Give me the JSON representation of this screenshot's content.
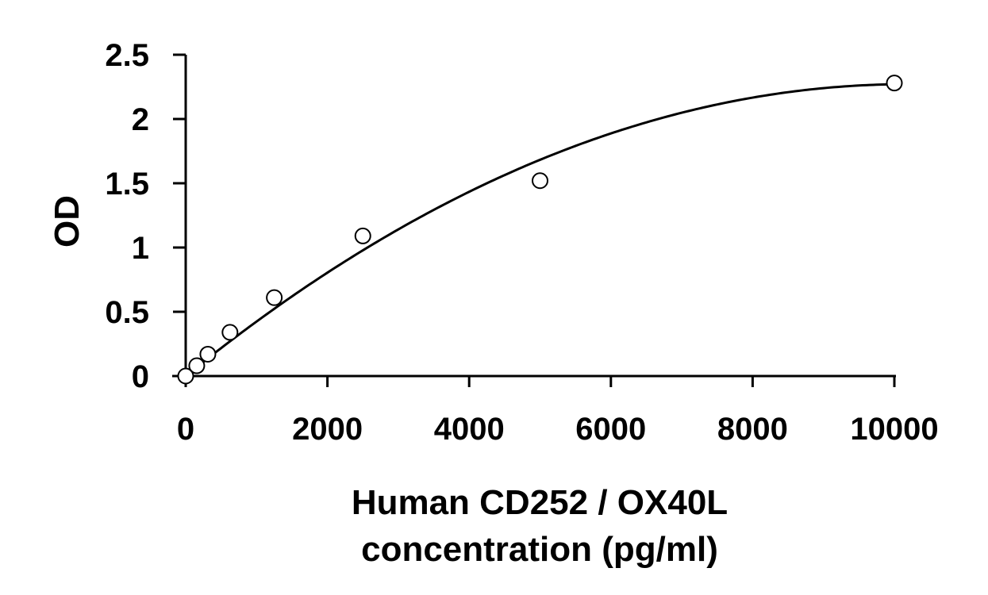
{
  "chart_data": {
    "type": "scatter",
    "xlabel_lines": [
      "Human CD252 / OX40L",
      "concentration (pg/ml)"
    ],
    "ylabel": "OD",
    "xlim": [
      0,
      10000
    ],
    "ylim": [
      0,
      2.5
    ],
    "x_ticks": [
      0,
      2000,
      4000,
      6000,
      8000,
      10000
    ],
    "x_tick_labels": [
      "0",
      "2000",
      "4000",
      "6000",
      "8000",
      "10000"
    ],
    "y_ticks": [
      0,
      0.5,
      1,
      1.5,
      2,
      2.5
    ],
    "y_tick_labels": [
      "0",
      "0.5",
      "1",
      "1.5",
      "2",
      "2.5"
    ],
    "grid": false,
    "legend": "none",
    "series": [
      {
        "x": [
          0,
          156,
          313,
          625,
          1250,
          2500,
          5000,
          10000
        ],
        "y": [
          0.0,
          0.08,
          0.17,
          0.34,
          0.61,
          1.09,
          1.52,
          2.28
        ],
        "marker": "open-circle"
      }
    ],
    "fit_curve": {
      "type": "polynomial-2",
      "coefficients": [
        0.0,
        0.000446,
        -2.19e-08
      ]
    }
  }
}
